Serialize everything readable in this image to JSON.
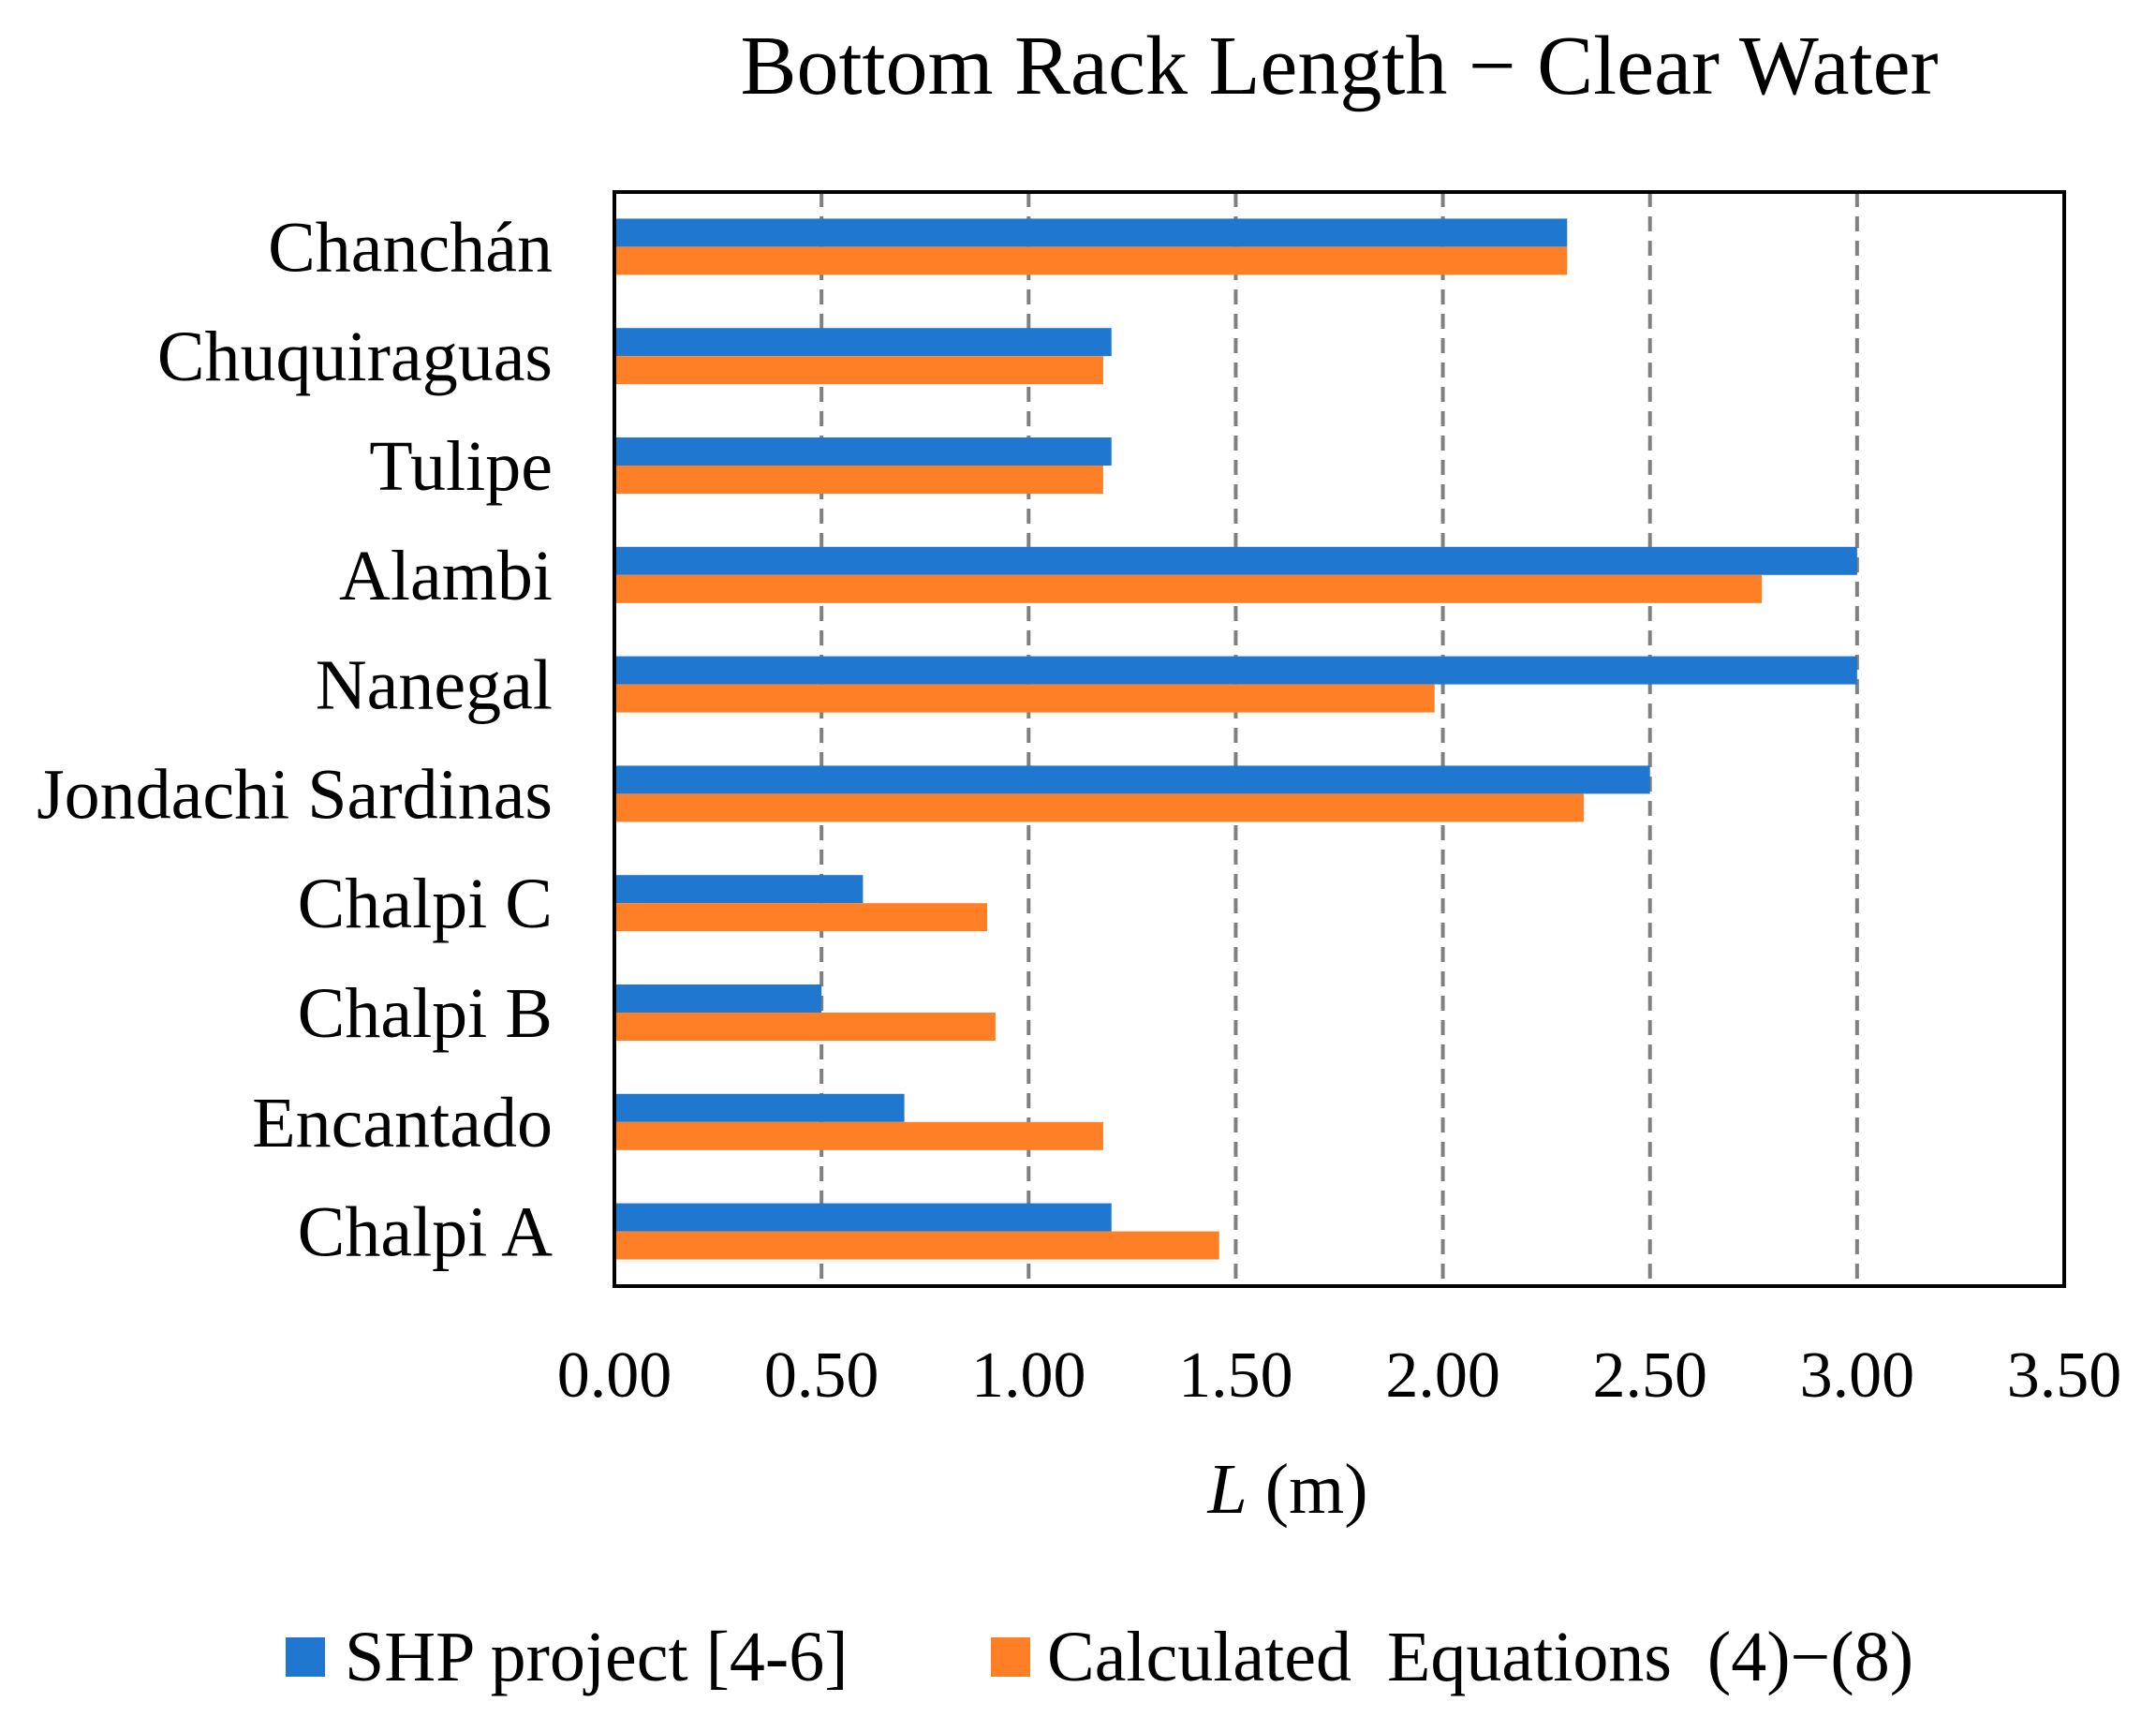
{
  "chart_data": {
    "type": "bar",
    "orientation": "horizontal",
    "title": "Bottom Rack Length − Clear Water",
    "xlabel_var": "L",
    "xlabel_unit": " (m)",
    "ylabel": "",
    "xlim": [
      0,
      3.5
    ],
    "xticks": [
      0,
      0.5,
      1.0,
      1.5,
      2.0,
      2.5,
      3.0,
      3.5
    ],
    "xtick_labels": [
      "0.00",
      "0.50",
      "1.00",
      "1.50",
      "2.00",
      "2.50",
      "3.00",
      "3.50"
    ],
    "grid": "vertical dashed",
    "categories": [
      "Chanchán",
      "Chuquiraguas",
      "Tulipe",
      "Alambi",
      "Nanegal",
      "Jondachi Sardinas",
      "Chalpi C",
      "Chalpi B",
      "Encantado",
      "Chalpi A"
    ],
    "series": [
      {
        "name": "SHP project [4-6]",
        "color": "#1f77d0",
        "values": [
          2.3,
          1.2,
          1.2,
          3.0,
          3.0,
          2.5,
          0.6,
          0.5,
          0.7,
          1.2
        ]
      },
      {
        "name": "Calculated  Equations  (4)−(8)",
        "color": "#ff7f27",
        "values": [
          2.3,
          1.18,
          1.18,
          2.77,
          1.98,
          2.34,
          0.9,
          0.92,
          1.18,
          1.46
        ]
      }
    ],
    "legend_position": "bottom"
  }
}
